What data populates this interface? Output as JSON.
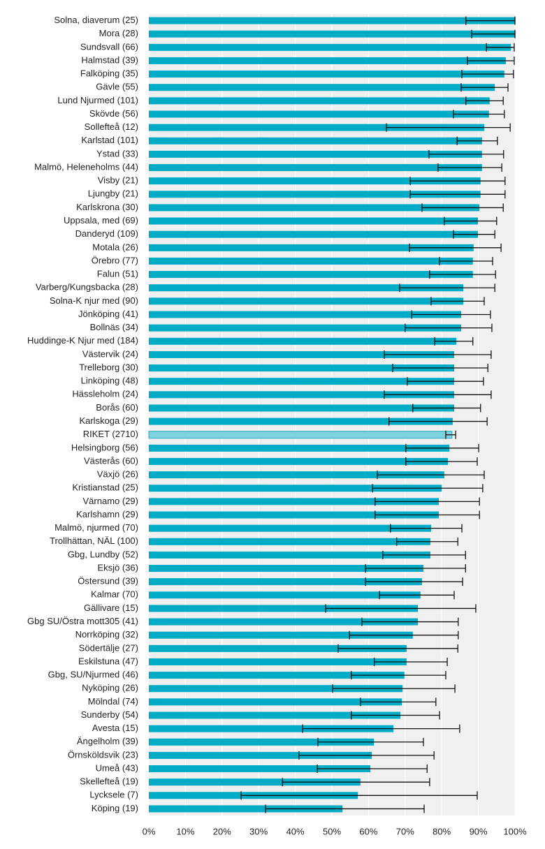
{
  "chart_data": {
    "type": "bar",
    "orientation": "horizontal",
    "categories": [
      "Solna, diaverum (25)",
      "Mora (28)",
      "Sundsvall (66)",
      "Halmstad (39)",
      "Falköping (35)",
      "Gävle (55)",
      "Lund Njurmed (101)",
      "Skövde (56)",
      "Sollefteå (12)",
      "Karlstad (101)",
      "Ystad (33)",
      "Malmö, Heleneholms (44)",
      "Visby (21)",
      "Ljungby (21)",
      "Karlskrona (30)",
      "Uppsala, med (69)",
      "Danderyd (109)",
      "Motala (26)",
      "Örebro (77)",
      "Falun (51)",
      "Varberg/Kungsbacka (28)",
      "Solna-K njur med (90)",
      "Jönköping (41)",
      "Bollnäs (34)",
      "Huddinge-K Njur med (184)",
      "Västervik (24)",
      "Trelleborg (30)",
      "Linköping (48)",
      "Hässleholm (24)",
      "Borås (60)",
      "Karlskoga (29)",
      "RIKET (2710)",
      "Helsingborg (56)",
      "Västerås (60)",
      "Växjö (26)",
      "Kristianstad (25)",
      "Värnamo (29)",
      "Karlshamn (29)",
      "Malmö, njurmed (70)",
      "Trollhättan, NÄL (100)",
      "Gbg, Lundby (52)",
      "Eksjö (36)",
      "Östersund (39)",
      "Kalmar (70)",
      "Gällivare (15)",
      "Gbg SU/Östra mott305 (41)",
      "Norrköping (32)",
      "Södertälje (27)",
      "Eskilstuna (47)",
      "Gbg, SU/Njurmed (46)",
      "Nyköping (26)",
      "Mölndal (74)",
      "Sunderby (54)",
      "Avesta (15)",
      "Ängelholm (39)",
      "Örnsköldsvik (23)",
      "Umeå (43)",
      "Skellefteå (19)",
      "Lycksele (7)",
      "Köping (19)"
    ],
    "values": [
      100,
      100,
      98.9,
      97.5,
      97.1,
      94.5,
      93.1,
      92.9,
      91.6,
      91.0,
      91.0,
      91.0,
      90.6,
      90.6,
      90.3,
      89.9,
      89.9,
      88.7,
      88.5,
      88.5,
      85.9,
      85.9,
      85.3,
      85.3,
      84.0,
      83.4,
      83.4,
      83.4,
      83.4,
      83.4,
      83.0,
      82.8,
      82.1,
      81.7,
      80.7,
      80.0,
      79.2,
      79.2,
      77.1,
      76.9,
      76.9,
      75.0,
      74.6,
      74.2,
      73.5,
      73.5,
      72.1,
      70.4,
      70.4,
      69.8,
      69.3,
      69.1,
      68.7,
      66.8,
      61.5,
      60.9,
      60.5,
      57.8,
      57.1,
      52.9
    ],
    "error_low": [
      86.6,
      88.2,
      92.2,
      87.0,
      85.5,
      85.3,
      86.6,
      83.2,
      64.9,
      84.2,
      76.5,
      79.0,
      71.4,
      71.4,
      74.6,
      80.7,
      83.2,
      71.2,
      79.4,
      76.7,
      68.5,
      77.1,
      71.8,
      70.0,
      78.1,
      64.3,
      66.6,
      70.6,
      64.3,
      72.1,
      65.6,
      81.1,
      70.2,
      70.2,
      62.4,
      61.1,
      61.8,
      61.8,
      66.0,
      67.7,
      63.9,
      59.2,
      59.2,
      63.0,
      48.3,
      58.2,
      54.8,
      51.7,
      61.6,
      55.3,
      50.2,
      57.8,
      55.3,
      42.0,
      46.2,
      41.0,
      46.0,
      36.5,
      25.2,
      31.9
    ],
    "error_high": [
      100,
      100,
      99.8,
      99.8,
      99.6,
      98.1,
      96.8,
      97.1,
      98.7,
      95.2,
      96.9,
      96.4,
      97.3,
      97.3,
      96.8,
      95.0,
      94.5,
      96.2,
      93.9,
      94.7,
      94.5,
      91.6,
      93.3,
      93.7,
      88.5,
      93.5,
      92.6,
      91.4,
      93.5,
      90.6,
      92.4,
      83.8,
      90.1,
      89.7,
      91.6,
      91.2,
      90.3,
      90.3,
      85.5,
      84.4,
      86.5,
      86.5,
      85.7,
      83.4,
      89.3,
      84.5,
      84.5,
      84.4,
      81.5,
      81.1,
      83.6,
      78.4,
      79.4,
      84.9,
      75.0,
      77.9,
      76.0,
      76.7,
      89.7,
      75.2
    ],
    "color": "#00abc6",
    "highlight_index": 31,
    "highlight_color": "#7fd2e0",
    "xlim": [
      0,
      100
    ],
    "xticks": [
      {
        "value": 0,
        "label": "0%"
      },
      {
        "value": 10,
        "label": "10%"
      },
      {
        "value": 20,
        "label": "20%"
      },
      {
        "value": 30,
        "label": "30%"
      },
      {
        "value": 40,
        "label": "40%"
      },
      {
        "value": 50,
        "label": "50%"
      },
      {
        "value": 60,
        "label": "60%"
      },
      {
        "value": 70,
        "label": "70%"
      },
      {
        "value": 80,
        "label": "80%"
      },
      {
        "value": 90,
        "label": "90%"
      },
      {
        "value": 100,
        "label": "100%"
      }
    ],
    "grid": true
  }
}
